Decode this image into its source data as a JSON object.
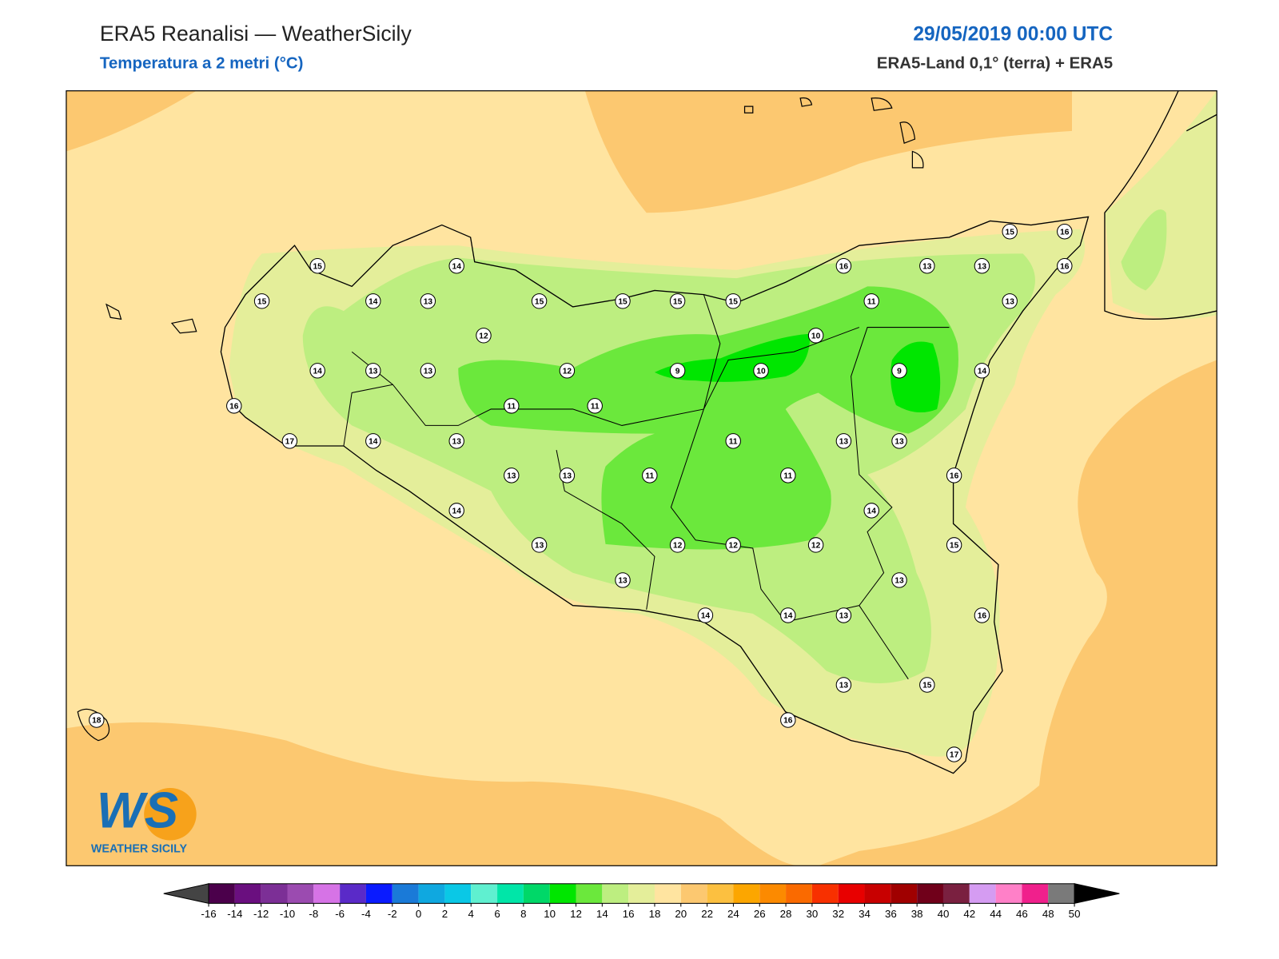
{
  "header": {
    "title": "ERA5 Reanalisi — WeatherSicily",
    "subtitle": "Temperatura a 2 metri (°C)",
    "date": "29/05/2019 00:00 UTC",
    "source": "ERA5-Land 0,1° (terra) + ERA5"
  },
  "stations": [
    15,
    14,
    15,
    14,
    13,
    15,
    15,
    15,
    15,
    16,
    13,
    13,
    15,
    16,
    16,
    13,
    11,
    12,
    10,
    14,
    13,
    13,
    12,
    9,
    10,
    9,
    14,
    16,
    11,
    11,
    17,
    14,
    13,
    11,
    13,
    13,
    13,
    13,
    11,
    11,
    16,
    14,
    14,
    13,
    12,
    12,
    12,
    15,
    13,
    13,
    14,
    14,
    13,
    16,
    13,
    15,
    16,
    17,
    18
  ],
  "logo": {
    "mark": "WS",
    "name": "WEATHER SICILY"
  },
  "colorbar": {
    "ticks": [
      -16,
      -14,
      -12,
      -10,
      -8,
      -6,
      -4,
      -2,
      0,
      2,
      4,
      6,
      8,
      10,
      12,
      14,
      16,
      18,
      20,
      22,
      24,
      26,
      28,
      30,
      32,
      34,
      36,
      38,
      40,
      42,
      44,
      46,
      48,
      50
    ],
    "colors": [
      "#4b004b",
      "#6a0f7f",
      "#7c2f96",
      "#9b4bb0",
      "#d673e6",
      "#5a2ac8",
      "#0a1bff",
      "#1a7ad8",
      "#0fa8e0",
      "#0ac8e6",
      "#5ff0d0",
      "#00e6a8",
      "#00d868",
      "#00e600",
      "#6be83c",
      "#bdee80",
      "#e4ee9a",
      "#ffe4a0",
      "#fcc870",
      "#fcc040",
      "#fca600",
      "#fc8a00",
      "#fa6a00",
      "#f83000",
      "#e80000",
      "#c80000",
      "#a00000",
      "#70001a",
      "#7a2040",
      "#d59cf2",
      "#ff80c8",
      "#f0208c",
      "#7a7a7a",
      "#3a3a3a"
    ]
  }
}
